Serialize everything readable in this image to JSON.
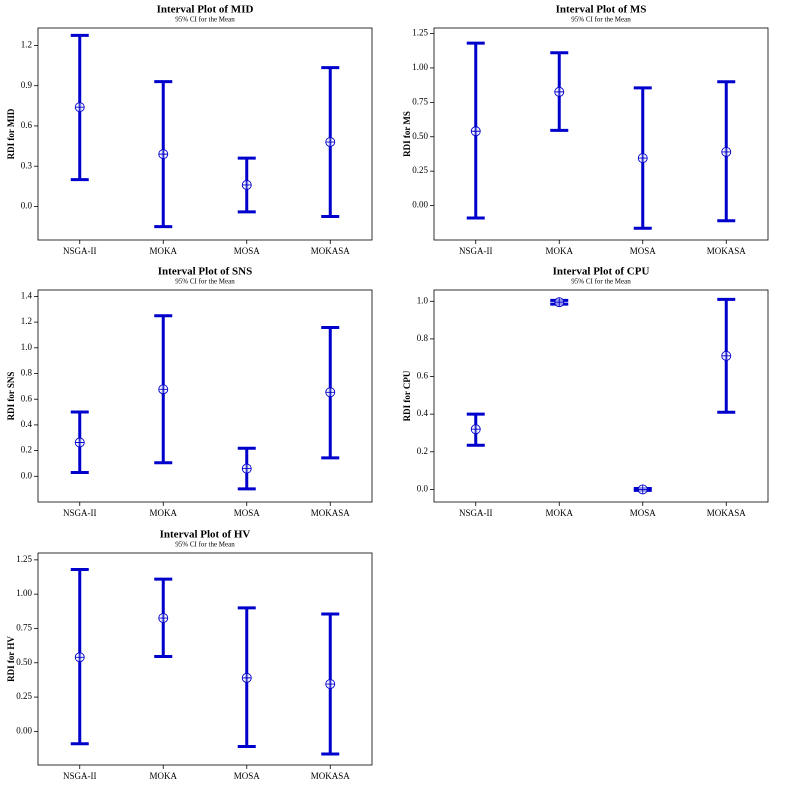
{
  "chart_data": [
    {
      "type": "interval",
      "title": "Interval Plot of MID",
      "subtitle": "95% CI for the Mean",
      "ylabel": "RDI for MID",
      "categories": [
        "NSGA-II",
        "MOKA",
        "MOSA",
        "MOKASA"
      ],
      "values": [
        0.74,
        0.39,
        0.16,
        0.48
      ],
      "lower": [
        0.2,
        -0.15,
        -0.04,
        -0.075
      ],
      "upper": [
        1.275,
        0.93,
        0.36,
        1.035
      ],
      "color": "#0000cc",
      "ylim": [
        -0.25,
        1.33
      ],
      "yticks": [
        {
          "value": 0,
          "label": "0.0"
        },
        0.3,
        0.6,
        0.9,
        1.2
      ]
    },
    {
      "type": "interval",
      "title": "Interval Plot of MS",
      "subtitle": "95% CI for the Mean",
      "ylabel": "RDI for MS",
      "categories": [
        "NSGA-II",
        "MOKA",
        "MOSA",
        "MOKASA"
      ],
      "values": [
        0.54,
        0.826,
        0.345,
        0.39
      ],
      "lower": [
        -0.09,
        0.546,
        -0.165,
        -0.11
      ],
      "upper": [
        1.18,
        1.11,
        0.855,
        0.9
      ],
      "color": "#0000cc",
      "ylim": [
        -0.25,
        1.29
      ],
      "yticks": [
        {
          "value": 0,
          "label": "0.00"
        },
        0.25,
        {
          "value": 0.5,
          "label": "0.50"
        },
        0.75,
        {
          "value": 1,
          "label": "1.00"
        },
        1.25
      ]
    },
    {
      "type": "interval",
      "title": "Interval Plot of SNS",
      "subtitle": "95% CI for the Mean",
      "ylabel": "RDI for SNS",
      "categories": [
        "NSGA-II",
        "MOKA",
        "MOSA",
        "MOKASA"
      ],
      "values": [
        0.263,
        0.677,
        0.06,
        0.654
      ],
      "lower": [
        0.03,
        0.105,
        -0.098,
        0.143
      ],
      "upper": [
        0.5,
        1.25,
        0.218,
        1.158
      ],
      "color": "#0000cc",
      "ylim": [
        -0.2,
        1.45
      ],
      "yticks": [
        {
          "value": 0,
          "label": "0.0"
        },
        0.2,
        0.4,
        0.6,
        0.8,
        {
          "value": 1,
          "label": "1.0"
        },
        1.2,
        1.4
      ]
    },
    {
      "type": "interval",
      "title": "Interval Plot of CPU",
      "subtitle": "95% CI for the Mean",
      "ylabel": "RDI for CPU",
      "categories": [
        "NSGA-II",
        "MOKA",
        "MOSA",
        "MOKASA"
      ],
      "values": [
        0.32,
        0.995,
        0,
        0.71
      ],
      "lower": [
        0.235,
        0.985,
        -0.005,
        0.41
      ],
      "upper": [
        0.4,
        1.005,
        0.005,
        1.01
      ],
      "color": "#0000cc",
      "ylim": [
        -0.067,
        1.06
      ],
      "yticks": [
        {
          "value": 0,
          "label": "0.0"
        },
        0.2,
        0.4,
        0.6,
        0.8,
        {
          "value": 1,
          "label": "1.0"
        }
      ]
    },
    {
      "type": "interval",
      "title": "Interval Plot of HV",
      "subtitle": "95% CI for the Mean",
      "ylabel": "RDI for HV",
      "categories": [
        "NSGA-II",
        "MOKA",
        "MOSA",
        "MOKASA"
      ],
      "values": [
        0.54,
        0.826,
        0.39,
        0.345
      ],
      "lower": [
        -0.09,
        0.546,
        -0.11,
        -0.165
      ],
      "upper": [
        1.18,
        1.11,
        0.9,
        0.855
      ],
      "color": "#0000cc",
      "ylim": [
        -0.245,
        1.3
      ],
      "yticks": [
        {
          "value": 0,
          "label": "0.00"
        },
        0.25,
        {
          "value": 0.5,
          "label": "0.50"
        },
        0.75,
        {
          "value": 1,
          "label": "1.00"
        },
        1.25
      ]
    }
  ]
}
